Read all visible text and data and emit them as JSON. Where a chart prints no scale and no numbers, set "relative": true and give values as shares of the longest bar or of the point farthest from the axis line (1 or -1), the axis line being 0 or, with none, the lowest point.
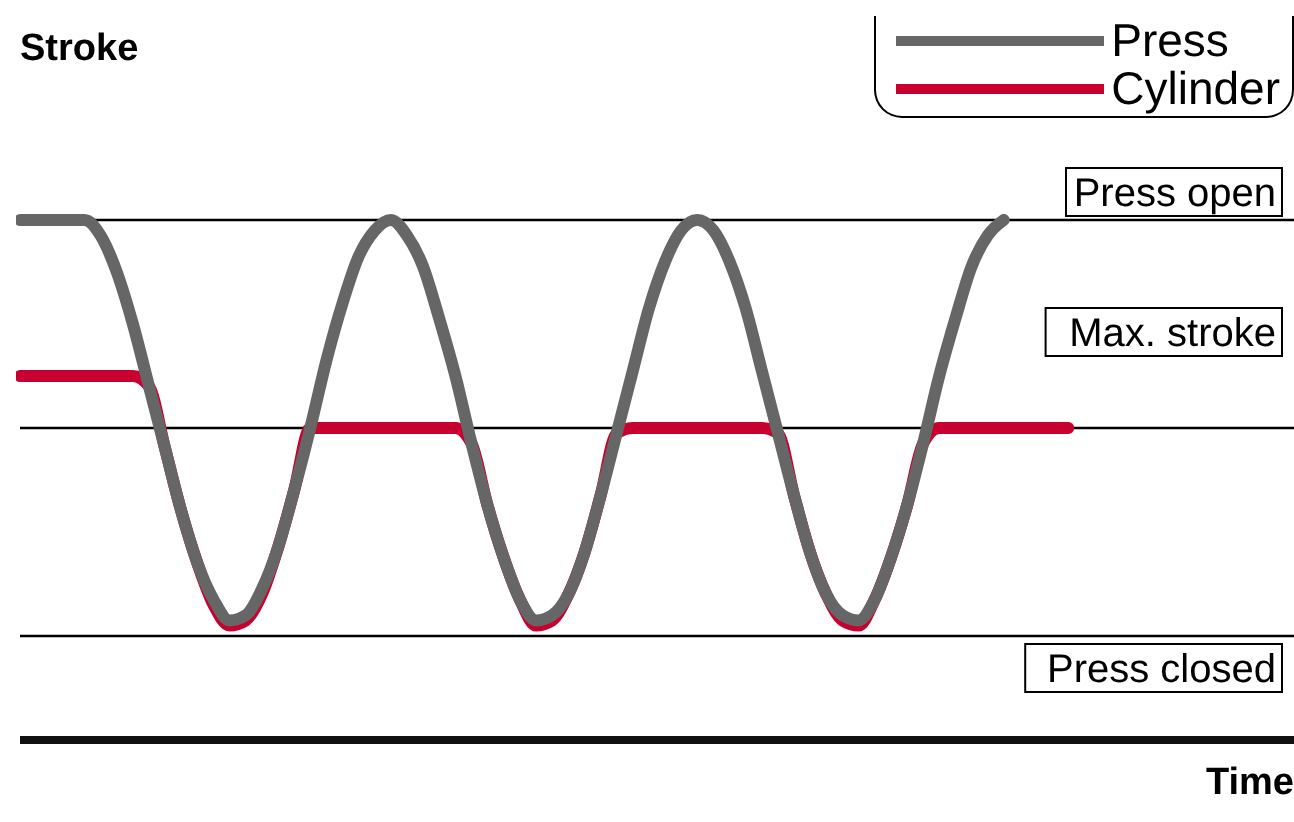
{
  "chart_data": {
    "type": "line",
    "ylabel": "Stroke",
    "xlabel": "Time",
    "relative": true,
    "legend": "top right",
    "categories": [
      null,
      null,
      null,
      null,
      null,
      null,
      null,
      null,
      null,
      null,
      null,
      null,
      null,
      null,
      null,
      null,
      null,
      null,
      null,
      null,
      null,
      null,
      null,
      null,
      null,
      null,
      null,
      null,
      null,
      null,
      null,
      null,
      null,
      null,
      null,
      null,
      null,
      null,
      null,
      null,
      null,
      null,
      null,
      null,
      null,
      null,
      null,
      null,
      null,
      null,
      null,
      null,
      null,
      null,
      null,
      null,
      null,
      null,
      null,
      null,
      null,
      null,
      null,
      null,
      null,
      null,
      null,
      null,
      null,
      null,
      null,
      null,
      null,
      null,
      null,
      null,
      null,
      null,
      null,
      null
    ],
    "series": [
      {
        "name": "Press",
        "color": "#666666",
        "values": [
          1,
          1,
          1,
          1,
          1,
          0.97,
          0.9,
          0.8,
          0.68,
          0.56,
          0.44,
          0.34,
          0.27,
          0.23,
          0.24,
          0.29,
          0.37,
          0.48,
          0.6,
          0.73,
          0.84,
          0.93,
          0.98,
          1,
          0.97,
          0.91,
          0.81,
          0.7,
          0.57,
          0.45,
          0.35,
          0.27,
          0.23,
          0.24,
          0.28,
          0.36,
          0.47,
          0.59,
          0.71,
          0.83,
          0.92,
          0.98,
          1,
          0.98,
          0.92,
          0.83,
          0.71,
          0.59,
          0.47,
          0.36,
          0.28,
          0.24,
          0.23,
          0.27,
          0.35,
          0.45,
          0.57,
          0.7,
          0.81,
          0.91,
          0.97,
          1,
          null,
          null,
          null,
          null,
          null,
          null,
          null,
          null,
          null,
          null,
          null,
          null,
          null,
          null,
          null,
          null,
          null,
          null
        ]
      },
      {
        "name": "Cylinder",
        "color": "#c8002f",
        "values": [
          0.7,
          0.7,
          0.7,
          0.7,
          0.7,
          0.7,
          0.7,
          0.7,
          0.68,
          0.56,
          0.44,
          0.34,
          0.26,
          0.22,
          0.23,
          0.28,
          0.37,
          0.48,
          0.6,
          0.6,
          0.6,
          0.6,
          0.6,
          0.6,
          0.6,
          0.6,
          0.6,
          0.6,
          0.57,
          0.45,
          0.35,
          0.27,
          0.22,
          0.23,
          0.28,
          0.36,
          0.47,
          0.59,
          0.6,
          0.6,
          0.6,
          0.6,
          0.6,
          0.6,
          0.6,
          0.6,
          0.6,
          0.59,
          0.47,
          0.36,
          0.28,
          0.23,
          0.22,
          0.27,
          0.35,
          0.45,
          0.57,
          0.6,
          0.6,
          0.6,
          0.6,
          0.6,
          0.6,
          0.6,
          0.6,
          0.6,
          null,
          null,
          null,
          null,
          null,
          null,
          null,
          null,
          null,
          null,
          null,
          null,
          null,
          null
        ]
      }
    ],
    "ref_lines": [
      {
        "axis": "y",
        "value": 1,
        "label": "Press open",
        "color": "#000000"
      },
      {
        "axis": "y",
        "value": 0.6,
        "label": "Max. stroke",
        "color": "#000000"
      },
      {
        "axis": "y",
        "value": 0.2,
        "label": "Press closed",
        "color": "#000000"
      }
    ]
  }
}
